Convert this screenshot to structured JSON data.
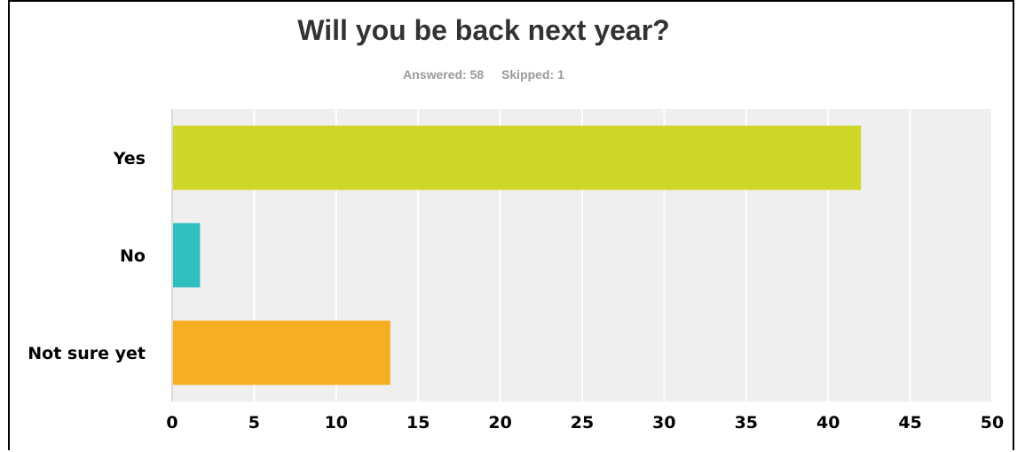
{
  "title": "Will you be back next year?",
  "answered": "Answered: 58",
  "skipped": "Skipped: 1",
  "chart_data": {
    "type": "bar",
    "orientation": "horizontal",
    "title": "Will you be back next year?",
    "categories": [
      "Yes",
      "No",
      "Not sure yet"
    ],
    "values": [
      42,
      1.7,
      13.3
    ],
    "colors": [
      "#cfd62a",
      "#30bfbf",
      "#f7ae22"
    ],
    "xlim": [
      0,
      50
    ],
    "xticks": [
      "0",
      "5",
      "10",
      "15",
      "20",
      "25",
      "30",
      "35",
      "40",
      "45",
      "50"
    ],
    "grid": true,
    "plot_background": "#efefef",
    "gridline_color": "#ffffff"
  }
}
